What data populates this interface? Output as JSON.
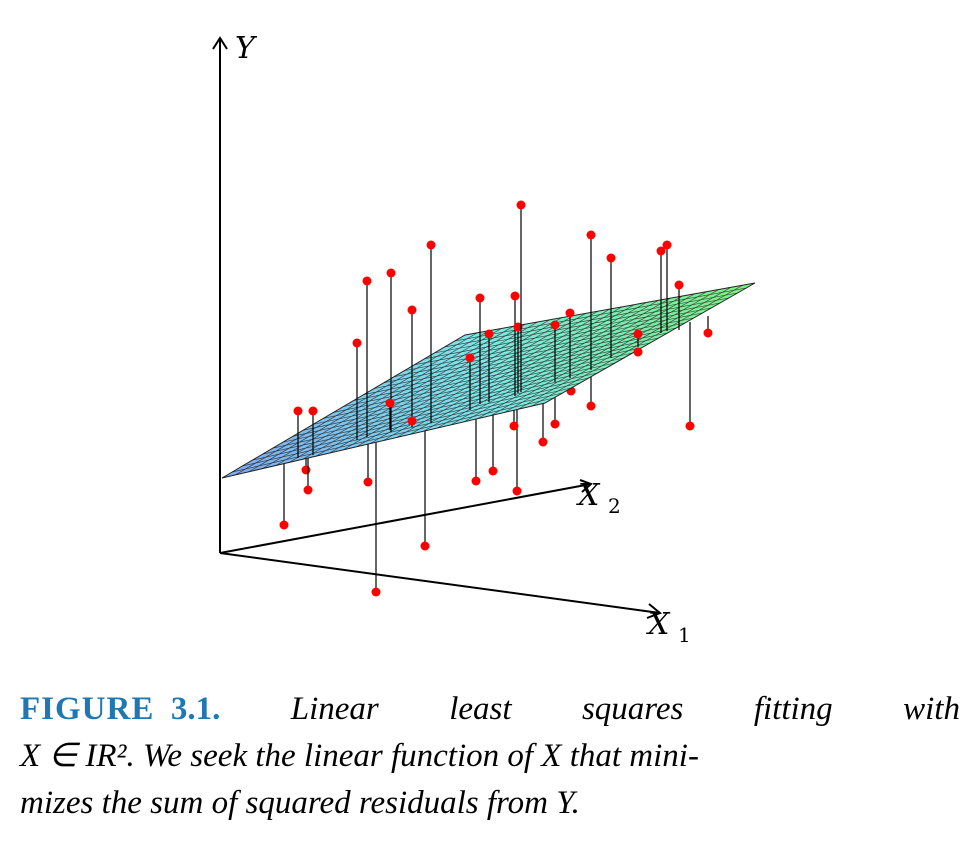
{
  "figure": {
    "axes": {
      "y_label": "Y",
      "x2_label": "X",
      "x2_sub": "2",
      "x1_label": "X",
      "x1_sub": "1"
    },
    "surface_colors": {
      "low": "#7fa8f0",
      "mid": "#7fe6e6",
      "high": "#7ff07f",
      "mesh": "#1a1a1a"
    },
    "point_color": "#ff0000"
  },
  "caption": {
    "label": "FIGURE",
    "number": "3.1.",
    "line1_words": [
      "Linear",
      "least",
      "squares",
      "fitting",
      "with"
    ],
    "line2": "X ∈ IR². We seek the linear function of X that mini-",
    "line3": "mizes the sum of squared residuals from Y."
  }
}
